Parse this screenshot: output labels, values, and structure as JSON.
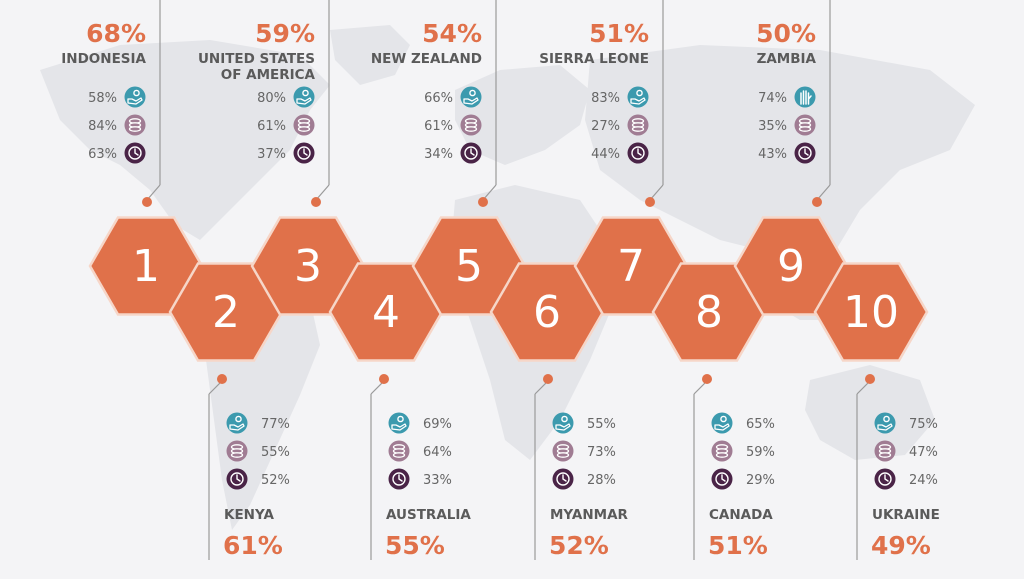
{
  "colors": {
    "background": "#f4f4f6",
    "map": "#e4e5e9",
    "hexagon": "#e0714a",
    "hexagon_stroke": "#f6d6c8",
    "accent": "#e0714a",
    "country": "#5a5a5a",
    "line": "#9a9a9a",
    "icon_teal": "#3c9aae",
    "icon_mauve": "#a07c93",
    "icon_purple": "#4a2447"
  },
  "chart_data": {
    "type": "table",
    "metrics": [
      {
        "icon": "hand-coin-icon"
      },
      {
        "icon": "coin-stack-icon"
      },
      {
        "icon": "clock-icon"
      }
    ],
    "entries": [
      {
        "rank": "1",
        "country": [
          "INDONESIA"
        ],
        "total": "68%",
        "values": [
          "58%",
          "84%",
          "63%"
        ]
      },
      {
        "rank": "2",
        "country": [
          "KENYA"
        ],
        "total": "61%",
        "values": [
          "77%",
          "55%",
          "52%"
        ]
      },
      {
        "rank": "3",
        "country": [
          "UNITED STATES",
          "OF AMERICA"
        ],
        "total": "59%",
        "values": [
          "80%",
          "61%",
          "37%"
        ]
      },
      {
        "rank": "4",
        "country": [
          "AUSTRALIA"
        ],
        "total": "55%",
        "values": [
          "69%",
          "64%",
          "33%"
        ]
      },
      {
        "rank": "5",
        "country": [
          "NEW ZEALAND"
        ],
        "total": "54%",
        "values": [
          "66%",
          "61%",
          "34%"
        ]
      },
      {
        "rank": "6",
        "country": [
          "MYANMAR"
        ],
        "total": "52%",
        "values": [
          "55%",
          "73%",
          "28%"
        ]
      },
      {
        "rank": "7",
        "country": [
          "SIERRA LEONE"
        ],
        "total": "51%",
        "values": [
          "83%",
          "27%",
          "44%"
        ]
      },
      {
        "rank": "8",
        "country": [
          "CANADA"
        ],
        "total": "51%",
        "values": [
          "65%",
          "59%",
          "29%"
        ]
      },
      {
        "rank": "9",
        "country": [
          "ZAMBIA"
        ],
        "total": "50%",
        "values": [
          "74%",
          "35%",
          "43%"
        ],
        "first_icon": "raised-hand-icon"
      },
      {
        "rank": "10",
        "country": [
          "UKRAINE"
        ],
        "total": "49%",
        "values": [
          "75%",
          "47%",
          "24%"
        ]
      }
    ]
  }
}
